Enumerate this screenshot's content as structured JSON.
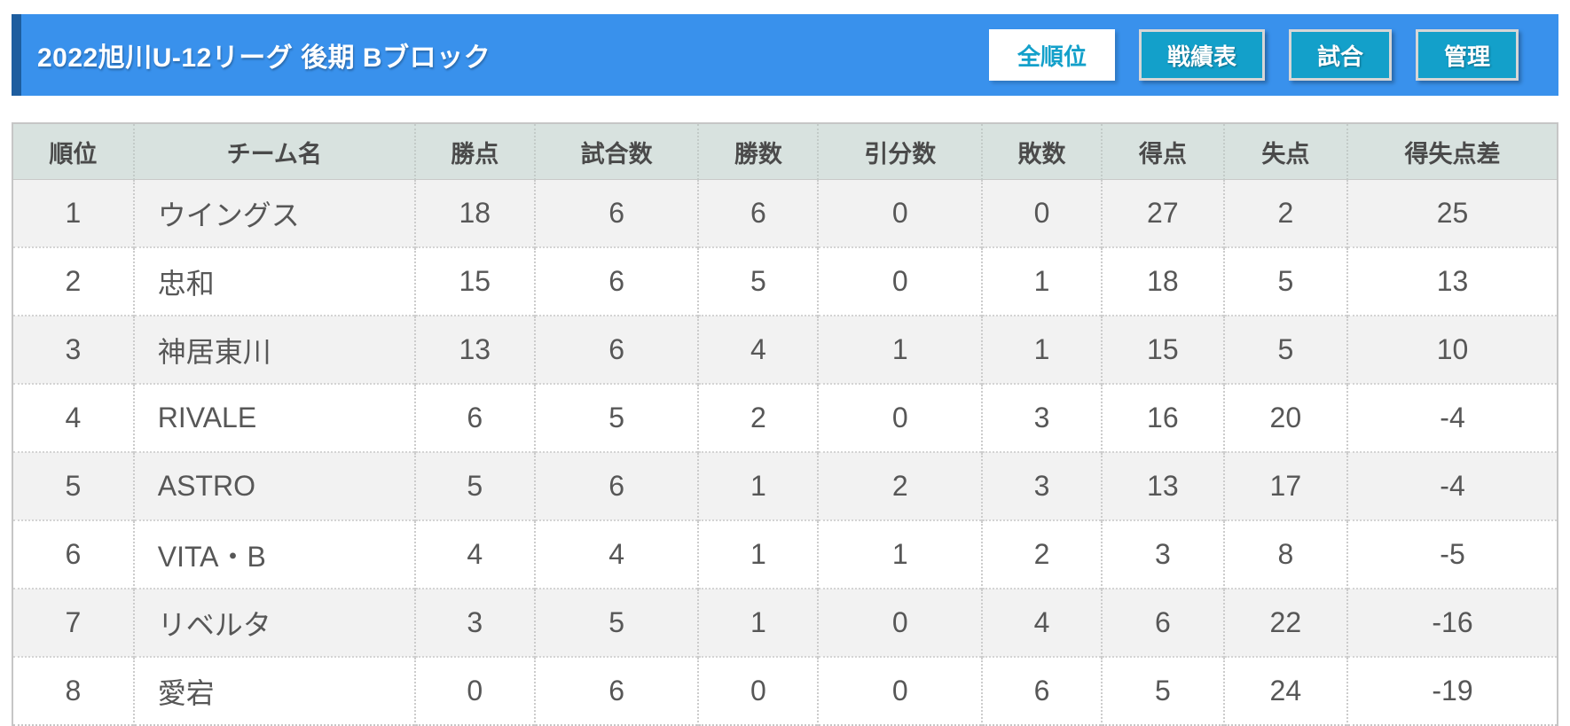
{
  "header": {
    "title": "2022旭川U-12リーグ 後期 Bブロック",
    "buttons": [
      {
        "key": "all-rankings",
        "label": "全順位",
        "active": true
      },
      {
        "key": "results-table",
        "label": "戦績表",
        "active": false
      },
      {
        "key": "matches",
        "label": "試合",
        "active": false
      },
      {
        "key": "admin",
        "label": "管理",
        "active": false
      }
    ]
  },
  "standings": {
    "columns": [
      "順位",
      "チーム名",
      "勝点",
      "試合数",
      "勝数",
      "引分数",
      "敗数",
      "得点",
      "失点",
      "得失点差"
    ],
    "rows": [
      [
        "1",
        "ウイングス",
        "18",
        "6",
        "6",
        "0",
        "0",
        "27",
        "2",
        "25"
      ],
      [
        "2",
        "忠和",
        "15",
        "6",
        "5",
        "0",
        "1",
        "18",
        "5",
        "13"
      ],
      [
        "3",
        "神居東川",
        "13",
        "6",
        "4",
        "1",
        "1",
        "15",
        "5",
        "10"
      ],
      [
        "4",
        "RIVALE",
        "6",
        "5",
        "2",
        "0",
        "3",
        "16",
        "20",
        "-4"
      ],
      [
        "5",
        "ASTRO",
        "5",
        "6",
        "1",
        "2",
        "3",
        "13",
        "17",
        "-4"
      ],
      [
        "6",
        "VITA・B",
        "4",
        "4",
        "1",
        "1",
        "2",
        "3",
        "8",
        "-5"
      ],
      [
        "7",
        "リベルタ",
        "3",
        "5",
        "1",
        "0",
        "4",
        "6",
        "22",
        "-16"
      ],
      [
        "8",
        "愛宕",
        "0",
        "6",
        "0",
        "0",
        "6",
        "5",
        "24",
        "-19"
      ]
    ]
  },
  "colors": {
    "header_blue": "#3991ec",
    "header_accent_stripe": "#1d5d9f",
    "button_teal": "#13a0ca",
    "table_header_bg": "#d8e2df",
    "row_alt_bg": "#f2f2f2"
  }
}
